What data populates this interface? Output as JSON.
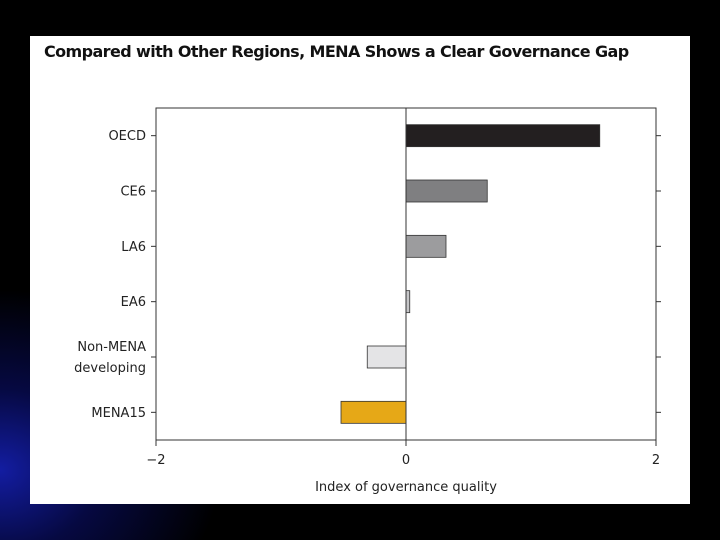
{
  "chart_data": {
    "type": "bar",
    "orientation": "horizontal",
    "title": "Compared with Other Regions, MENA Shows a Clear Governance Gap",
    "xlabel": "Index of governance quality",
    "ylabel": "",
    "xlim": [
      -2,
      2
    ],
    "xticks": [
      -2,
      0,
      2
    ],
    "xtick_labels": [
      "−2",
      "0",
      "2"
    ],
    "categories": [
      "OECD",
      "CE6",
      "LA6",
      "EA6",
      "Non-MENA developing",
      "MENA15"
    ],
    "category_label_lines": [
      [
        "OECD"
      ],
      [
        "CE6"
      ],
      [
        "LA6"
      ],
      [
        "EA6"
      ],
      [
        "Non-MENA",
        "developing"
      ],
      [
        "MENA15"
      ]
    ],
    "values": [
      1.55,
      0.65,
      0.32,
      0.03,
      -0.31,
      -0.52
    ],
    "bar_colors": [
      "#231f20",
      "#7f7f81",
      "#9c9c9e",
      "#c6c6c8",
      "#e4e4e6",
      "#e6a817"
    ],
    "grid": false,
    "reference_line": 0,
    "legend": "none"
  }
}
